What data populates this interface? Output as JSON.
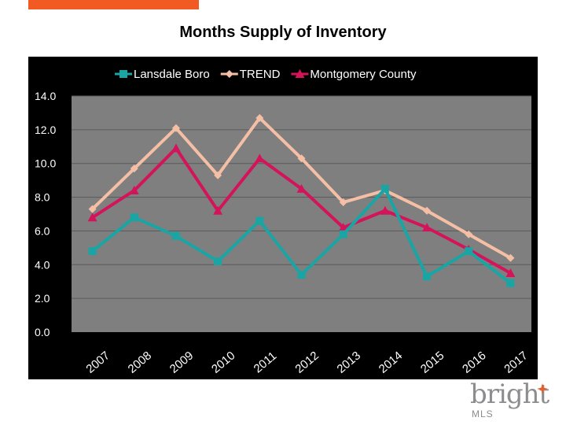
{
  "title": "Months Supply of Inventory",
  "brand": {
    "word": "bright",
    "sub": "MLS"
  },
  "colors": {
    "background": "#000000",
    "plot_background": "#7f7f7f",
    "gridline": "#5a5a5a",
    "accent_bar": "#f15a22"
  },
  "chart_data": {
    "type": "line",
    "title": "Months Supply of Inventory",
    "xlabel": "",
    "ylabel": "",
    "ylim": [
      0,
      14
    ],
    "yticks": [
      "0.0",
      "2.0",
      "4.0",
      "6.0",
      "8.0",
      "10.0",
      "12.0",
      "14.0"
    ],
    "grid": true,
    "legend_position": "top",
    "categories": [
      "2007",
      "2008",
      "2009",
      "2010",
      "2011",
      "2012",
      "2013",
      "2014",
      "2015",
      "2016",
      "2017"
    ],
    "series": [
      {
        "name": "Lansdale Boro",
        "color": "#1aa5a5",
        "marker": "square",
        "values": [
          4.8,
          6.8,
          5.7,
          4.2,
          6.6,
          3.4,
          5.8,
          8.5,
          3.3,
          4.8,
          2.9
        ]
      },
      {
        "name": "TREND",
        "color": "#f5bfa6",
        "marker": "diamond",
        "values": [
          7.3,
          9.7,
          12.1,
          9.3,
          12.7,
          10.3,
          7.7,
          8.4,
          7.2,
          5.8,
          4.4
        ]
      },
      {
        "name": "Montgomery County",
        "color": "#d4145a",
        "marker": "triangle",
        "values": [
          6.8,
          8.4,
          10.9,
          7.2,
          10.3,
          8.5,
          6.2,
          7.2,
          6.2,
          4.9,
          3.5
        ]
      }
    ]
  }
}
